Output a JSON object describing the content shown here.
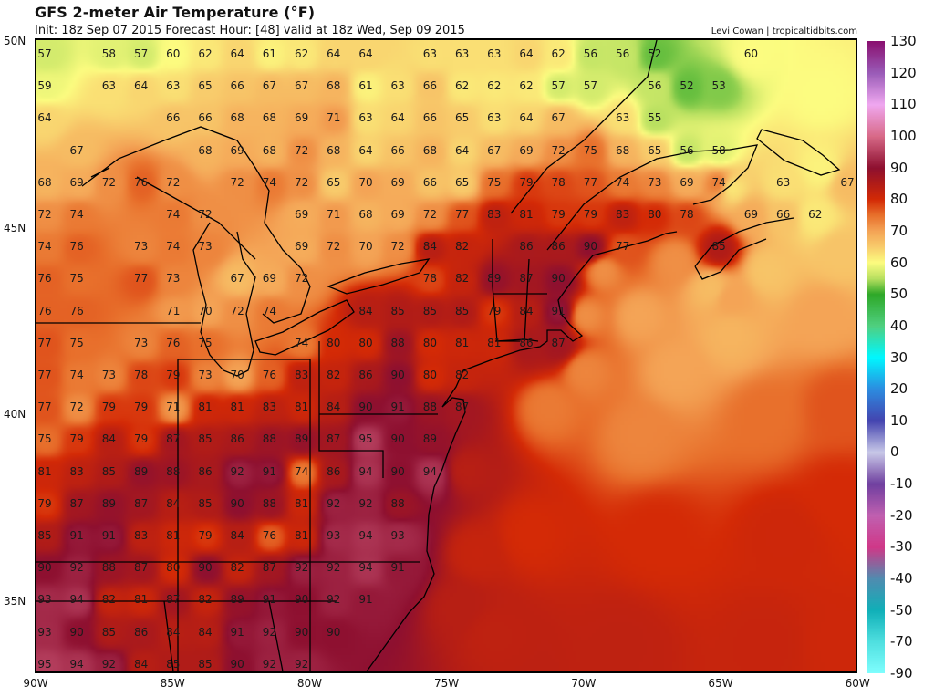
{
  "header": {
    "title": "GFS 2-meter Air Temperature (°F)",
    "subtitle": "Init: 18z Sep 07 2015   Forecast Hour: [48]   valid at 18z Wed, Sep 09 2015",
    "credit": "Levi Cowan | tropicaltidbits.com"
  },
  "map": {
    "lat_labels": [
      "50N",
      "45N",
      "40N",
      "35N"
    ],
    "lon_labels": [
      "90W",
      "85W",
      "80W",
      "75W",
      "70W",
      "65W",
      "60W"
    ],
    "extent": {
      "lon": [
        -90,
        -60
      ],
      "lat": [
        33.2,
        50
      ]
    },
    "temperature_grid_F": [
      [
        57,
        null,
        58,
        57,
        60,
        62,
        64,
        61,
        62,
        64,
        64,
        null,
        63,
        63,
        63,
        64,
        62,
        56,
        56,
        52,
        null,
        null,
        60,
        null,
        null,
        null
      ],
      [
        59,
        null,
        63,
        64,
        63,
        65,
        66,
        67,
        67,
        68,
        61,
        63,
        66,
        62,
        62,
        62,
        57,
        57,
        null,
        56,
        52,
        53,
        null,
        null,
        null,
        null
      ],
      [
        64,
        null,
        null,
        null,
        66,
        66,
        68,
        68,
        69,
        71,
        63,
        64,
        66,
        65,
        63,
        64,
        67,
        null,
        63,
        55,
        null,
        null,
        null,
        null,
        null,
        null
      ],
      [
        null,
        67,
        null,
        null,
        null,
        68,
        69,
        68,
        72,
        68,
        64,
        66,
        68,
        64,
        67,
        69,
        72,
        75,
        68,
        65,
        56,
        58,
        null,
        null,
        null,
        null
      ],
      [
        68,
        69,
        72,
        76,
        72,
        null,
        72,
        74,
        72,
        65,
        70,
        69,
        66,
        65,
        75,
        79,
        78,
        77,
        74,
        73,
        69,
        74,
        null,
        63,
        null,
        67
      ],
      [
        72,
        74,
        null,
        null,
        74,
        72,
        null,
        null,
        69,
        71,
        68,
        69,
        72,
        77,
        83,
        81,
        79,
        79,
        83,
        80,
        78,
        null,
        69,
        66,
        62,
        null
      ],
      [
        74,
        76,
        null,
        73,
        74,
        73,
        null,
        null,
        69,
        72,
        70,
        72,
        84,
        82,
        null,
        86,
        86,
        90,
        77,
        null,
        null,
        85,
        null,
        null,
        null,
        null
      ],
      [
        76,
        75,
        null,
        77,
        73,
        null,
        67,
        69,
        72,
        null,
        null,
        null,
        78,
        82,
        89,
        87,
        90
      ],
      [
        76,
        76,
        null,
        null,
        71,
        70,
        72,
        74,
        null,
        null,
        84,
        85,
        85,
        85,
        79,
        84,
        91
      ],
      [
        77,
        75,
        null,
        73,
        76,
        75,
        null,
        null,
        74,
        80,
        80,
        88,
        80,
        81,
        81,
        86,
        87
      ],
      [
        77,
        74,
        73,
        78,
        79,
        73,
        70,
        76,
        83,
        82,
        86,
        90,
        80,
        82
      ],
      [
        77,
        72,
        79,
        79,
        71,
        81,
        81,
        83,
        81,
        84,
        90,
        91,
        88,
        87
      ],
      [
        75,
        79,
        84,
        79,
        87,
        85,
        86,
        88,
        89,
        87,
        95,
        90,
        89
      ],
      [
        81,
        83,
        85,
        89,
        88,
        86,
        92,
        91,
        74,
        86,
        94,
        90,
        94
      ],
      [
        79,
        87,
        89,
        87,
        84,
        85,
        90,
        88,
        81,
        92,
        92,
        88
      ],
      [
        85,
        91,
        91,
        83,
        81,
        79,
        84,
        76,
        81,
        93,
        94,
        93
      ],
      [
        90,
        92,
        88,
        87,
        80,
        90,
        82,
        87,
        92,
        92,
        94,
        91
      ],
      [
        93,
        94,
        82,
        81,
        87,
        82,
        89,
        91,
        90,
        92,
        91
      ],
      [
        93,
        90,
        85,
        86,
        84,
        84,
        91,
        92,
        90,
        90
      ],
      [
        95,
        94,
        92,
        84,
        85,
        85,
        90,
        92,
        92
      ]
    ]
  },
  "colorbar": {
    "labels": [
      "130",
      "120",
      "110",
      "100",
      "90",
      "80",
      "70",
      "60",
      "50",
      "40",
      "30",
      "20",
      "10",
      "0",
      "-10",
      "-20",
      "-30",
      "-40",
      "-50",
      "-70",
      "-90"
    ],
    "stops": [
      {
        "v": 130,
        "c": "#8a1070"
      },
      {
        "v": 120,
        "c": "#9a5cb8"
      },
      {
        "v": 110,
        "c": "#f0a8f0"
      },
      {
        "v": 100,
        "c": "#d86a88"
      },
      {
        "v": 90,
        "c": "#8e1030"
      },
      {
        "v": 85,
        "c": "#b01c18"
      },
      {
        "v": 80,
        "c": "#d42a06"
      },
      {
        "v": 75,
        "c": "#e8702c"
      },
      {
        "v": 70,
        "c": "#f4a456"
      },
      {
        "v": 65,
        "c": "#f8cc6c"
      },
      {
        "v": 60,
        "c": "#fcfc80"
      },
      {
        "v": 55,
        "c": "#b8e060"
      },
      {
        "v": 50,
        "c": "#2ea828"
      },
      {
        "v": 40,
        "c": "#50d080"
      },
      {
        "v": 30,
        "c": "#00f8ff"
      },
      {
        "v": 20,
        "c": "#2c8ce0"
      },
      {
        "v": 10,
        "c": "#4444b0"
      },
      {
        "v": 0,
        "c": "#c8c8e8"
      },
      {
        "v": -10,
        "c": "#7040a0"
      },
      {
        "v": -20,
        "c": "#c060b0"
      },
      {
        "v": -30,
        "c": "#d03888"
      },
      {
        "v": -40,
        "c": "#508cb0"
      },
      {
        "v": -50,
        "c": "#10b0b8"
      },
      {
        "v": -70,
        "c": "#50e0e0"
      },
      {
        "v": -90,
        "c": "#80ffff"
      }
    ]
  }
}
